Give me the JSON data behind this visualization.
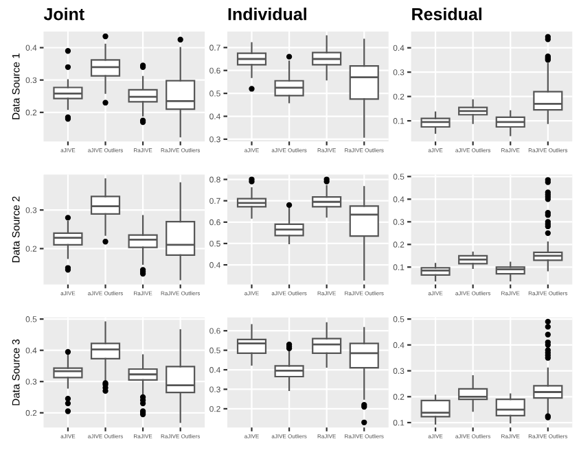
{
  "chart_data": [
    {
      "type": "box",
      "title": "Joint",
      "ylabel": "Data Source 1",
      "categories": [
        "aJIVE",
        "aJIVE Outliers",
        "RaJIVE",
        "RaJIVE Outliers"
      ],
      "ylim": [
        0.11,
        0.45
      ],
      "yticks": [
        0.2,
        0.3,
        0.4
      ],
      "grid": true,
      "boxes": [
        {
          "low": 0.21,
          "q1": 0.243,
          "median": 0.258,
          "q3": 0.277,
          "high": 0.3,
          "outliers": [
            0.18,
            0.185,
            0.34,
            0.39
          ]
        },
        {
          "low": 0.26,
          "q1": 0.313,
          "median": 0.34,
          "q3": 0.362,
          "high": 0.41,
          "outliers": [
            0.23,
            0.435
          ]
        },
        {
          "low": 0.19,
          "q1": 0.233,
          "median": 0.248,
          "q3": 0.27,
          "high": 0.31,
          "outliers": [
            0.17,
            0.175,
            0.34,
            0.345
          ]
        },
        {
          "low": 0.125,
          "q1": 0.21,
          "median": 0.235,
          "q3": 0.298,
          "high": 0.4,
          "outliers": [
            0.425
          ]
        }
      ]
    },
    {
      "type": "box",
      "title": "Individual",
      "categories": [
        "aJIVE",
        "aJIVE Outliers",
        "RaJIVE",
        "RaJIVE Outliers"
      ],
      "ylim": [
        0.29,
        0.77
      ],
      "yticks": [
        0.3,
        0.4,
        0.5,
        0.6,
        0.7
      ],
      "grid": true,
      "boxes": [
        {
          "low": 0.57,
          "q1": 0.625,
          "median": 0.65,
          "q3": 0.675,
          "high": 0.72,
          "outliers": [
            0.52
          ]
        },
        {
          "low": 0.46,
          "q1": 0.49,
          "median": 0.525,
          "q3": 0.555,
          "high": 0.64,
          "outliers": [
            0.66
          ]
        },
        {
          "low": 0.56,
          "q1": 0.625,
          "median": 0.65,
          "q3": 0.678,
          "high": 0.75
        },
        {
          "low": 0.31,
          "q1": 0.475,
          "median": 0.57,
          "q3": 0.62,
          "high": 0.735
        }
      ]
    },
    {
      "type": "box",
      "title": "Residual",
      "categories": [
        "aJIVE",
        "aJIVE Outliers",
        "RaJIVE",
        "RaJIVE Outliers"
      ],
      "ylim": [
        0.015,
        0.467
      ],
      "yticks": [
        0.1,
        0.2,
        0.3,
        0.4
      ],
      "grid": true,
      "boxes": [
        {
          "low": 0.05,
          "q1": 0.075,
          "median": 0.095,
          "q3": 0.11,
          "high": 0.135
        },
        {
          "low": 0.09,
          "q1": 0.125,
          "median": 0.14,
          "q3": 0.155,
          "high": 0.185
        },
        {
          "low": 0.04,
          "q1": 0.075,
          "median": 0.095,
          "q3": 0.115,
          "high": 0.14
        },
        {
          "low": 0.09,
          "q1": 0.145,
          "median": 0.17,
          "q3": 0.22,
          "high": 0.335,
          "outliers": [
            0.35,
            0.355,
            0.36,
            0.365,
            0.435,
            0.445
          ]
        }
      ]
    },
    {
      "type": "box",
      "ylabel": "Data Source 2",
      "categories": [
        "aJIVE",
        "aJIVE Outliers",
        "RaJIVE",
        "RaJIVE Outliers"
      ],
      "ylim": [
        0.107,
        0.392
      ],
      "yticks": [
        0.2,
        0.3
      ],
      "grid": true,
      "boxes": [
        {
          "low": 0.175,
          "q1": 0.21,
          "median": 0.228,
          "q3": 0.24,
          "high": 0.27,
          "outliers": [
            0.145,
            0.15,
            0.28
          ]
        },
        {
          "low": 0.235,
          "q1": 0.29,
          "median": 0.31,
          "q3": 0.335,
          "high": 0.38,
          "outliers": [
            0.218
          ]
        },
        {
          "low": 0.16,
          "q1": 0.203,
          "median": 0.223,
          "q3": 0.235,
          "high": 0.285,
          "outliers": [
            0.135,
            0.14,
            0.145
          ]
        },
        {
          "low": 0.12,
          "q1": 0.183,
          "median": 0.21,
          "q3": 0.27,
          "high": 0.37
        }
      ]
    },
    {
      "type": "box",
      "categories": [
        "aJIVE",
        "aJIVE Outliers",
        "RaJIVE",
        "RaJIVE Outliers"
      ],
      "ylim": [
        0.308,
        0.823
      ],
      "yticks": [
        0.4,
        0.5,
        0.6,
        0.7,
        0.8
      ],
      "grid": true,
      "boxes": [
        {
          "low": 0.62,
          "q1": 0.672,
          "median": 0.69,
          "q3": 0.71,
          "high": 0.76,
          "outliers": [
            0.79,
            0.8
          ]
        },
        {
          "low": 0.5,
          "q1": 0.537,
          "median": 0.565,
          "q3": 0.59,
          "high": 0.665,
          "outliers": [
            0.68
          ]
        },
        {
          "low": 0.625,
          "q1": 0.672,
          "median": 0.695,
          "q3": 0.718,
          "high": 0.77,
          "outliers": [
            0.79,
            0.8
          ]
        },
        {
          "low": 0.33,
          "q1": 0.535,
          "median": 0.635,
          "q3": 0.675,
          "high": 0.765
        }
      ]
    },
    {
      "type": "box",
      "categories": [
        "aJIVE",
        "aJIVE Outliers",
        "RaJIVE",
        "RaJIVE Outliers"
      ],
      "ylim": [
        0.023,
        0.509
      ],
      "yticks": [
        0.1,
        0.2,
        0.3,
        0.4,
        0.5
      ],
      "grid": true,
      "boxes": [
        {
          "low": 0.04,
          "q1": 0.065,
          "median": 0.085,
          "q3": 0.097,
          "high": 0.115
        },
        {
          "low": 0.095,
          "q1": 0.115,
          "median": 0.133,
          "q3": 0.15,
          "high": 0.165
        },
        {
          "low": 0.04,
          "q1": 0.07,
          "median": 0.09,
          "q3": 0.1,
          "high": 0.12
        },
        {
          "low": 0.085,
          "q1": 0.13,
          "median": 0.15,
          "q3": 0.165,
          "high": 0.21,
          "outliers": [
            0.25,
            0.28,
            0.29,
            0.3,
            0.33,
            0.34,
            0.4,
            0.41,
            0.42,
            0.43,
            0.475,
            0.485
          ]
        }
      ]
    },
    {
      "type": "box",
      "ylabel": "Data Source 3",
      "categories": [
        "aJIVE",
        "aJIVE Outliers",
        "RaJIVE",
        "RaJIVE Outliers"
      ],
      "ylim": [
        0.153,
        0.505
      ],
      "yticks": [
        0.2,
        0.3,
        0.4,
        0.5
      ],
      "grid": true,
      "boxes": [
        {
          "low": 0.28,
          "q1": 0.313,
          "median": 0.333,
          "q3": 0.343,
          "high": 0.385,
          "outliers": [
            0.205,
            0.23,
            0.245,
            0.395
          ]
        },
        {
          "low": 0.3,
          "q1": 0.373,
          "median": 0.403,
          "q3": 0.422,
          "high": 0.49,
          "outliers": [
            0.27,
            0.28,
            0.29,
            0.295
          ]
        },
        {
          "low": 0.26,
          "q1": 0.305,
          "median": 0.323,
          "q3": 0.34,
          "high": 0.385,
          "outliers": [
            0.195,
            0.2,
            0.205,
            0.23,
            0.24,
            0.25
          ]
        },
        {
          "low": 0.17,
          "q1": 0.265,
          "median": 0.288,
          "q3": 0.348,
          "high": 0.465
        }
      ]
    },
    {
      "type": "box",
      "categories": [
        "aJIVE",
        "aJIVE Outliers",
        "RaJIVE",
        "RaJIVE Outliers"
      ],
      "ylim": [
        0.104,
        0.668
      ],
      "yticks": [
        0.2,
        0.3,
        0.4,
        0.5,
        0.6
      ],
      "grid": true,
      "boxes": [
        {
          "low": 0.425,
          "q1": 0.485,
          "median": 0.535,
          "q3": 0.555,
          "high": 0.63
        },
        {
          "low": 0.295,
          "q1": 0.365,
          "median": 0.395,
          "q3": 0.42,
          "high": 0.5,
          "outliers": [
            0.51,
            0.52,
            0.53
          ]
        },
        {
          "low": 0.415,
          "q1": 0.485,
          "median": 0.53,
          "q3": 0.56,
          "high": 0.64
        },
        {
          "low": 0.25,
          "q1": 0.41,
          "median": 0.485,
          "q3": 0.535,
          "high": 0.615,
          "outliers": [
            0.13,
            0.21,
            0.22
          ]
        }
      ]
    },
    {
      "type": "box",
      "categories": [
        "aJIVE",
        "aJIVE Outliers",
        "RaJIVE",
        "RaJIVE Outliers"
      ],
      "ylim": [
        0.081,
        0.506
      ],
      "yticks": [
        0.1,
        0.2,
        0.3,
        0.4,
        0.5
      ],
      "grid": true,
      "boxes": [
        {
          "low": 0.095,
          "q1": 0.123,
          "median": 0.138,
          "q3": 0.185,
          "high": 0.205
        },
        {
          "low": 0.145,
          "q1": 0.19,
          "median": 0.2,
          "q3": 0.23,
          "high": 0.28
        },
        {
          "low": 0.1,
          "q1": 0.127,
          "median": 0.15,
          "q3": 0.19,
          "high": 0.21
        },
        {
          "low": 0.13,
          "q1": 0.195,
          "median": 0.218,
          "q3": 0.242,
          "high": 0.31,
          "outliers": [
            0.12,
            0.125,
            0.35,
            0.36,
            0.37,
            0.38,
            0.4,
            0.41,
            0.44,
            0.47,
            0.49
          ]
        }
      ]
    }
  ]
}
